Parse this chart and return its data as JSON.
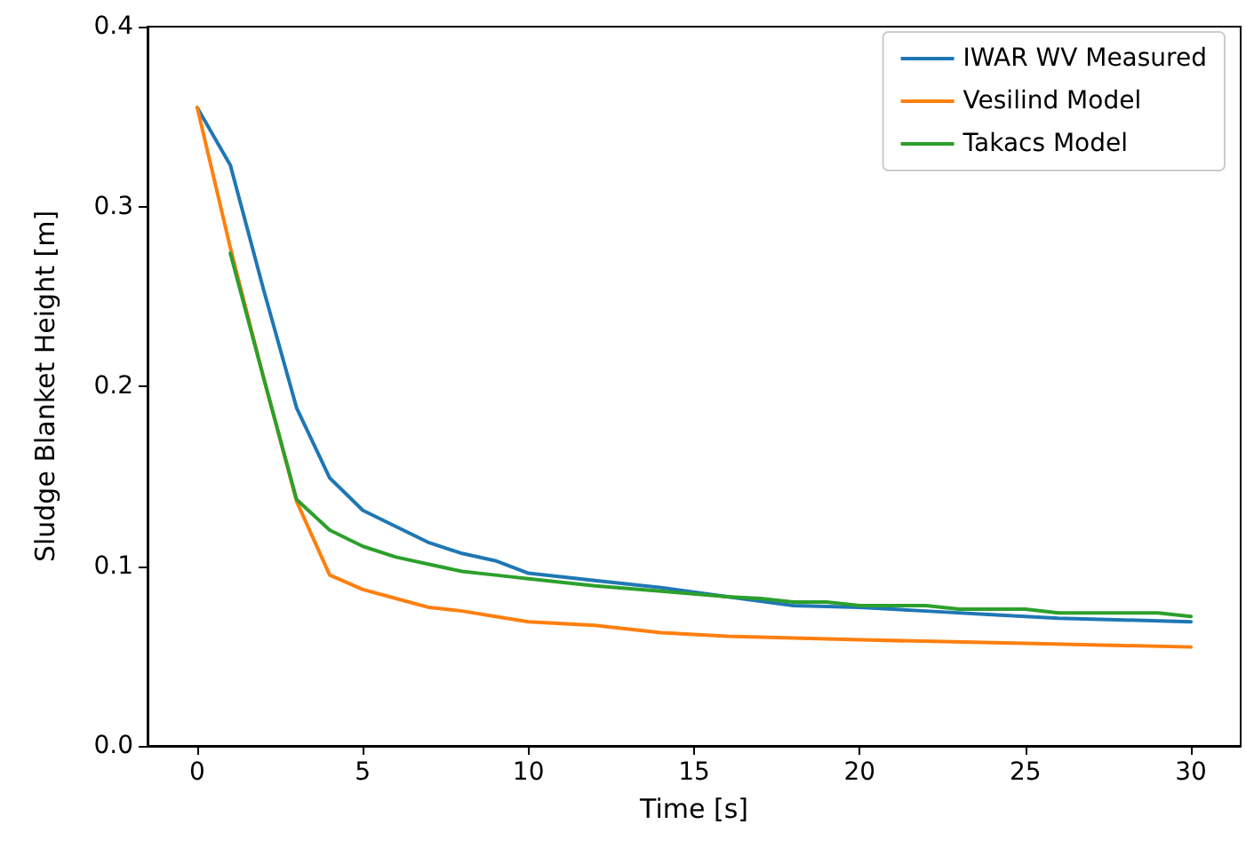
{
  "chart_data": {
    "type": "line",
    "xlabel": "Time [s]",
    "ylabel": "Sludge Blanket Height [m]",
    "xlim": [
      -1.5,
      31.5
    ],
    "ylim": [
      0,
      0.4
    ],
    "xticks": [
      0,
      5,
      10,
      15,
      20,
      25,
      30
    ],
    "yticks": [
      {
        "value": 0,
        "label": "0.0"
      },
      {
        "value": 0.1,
        "label": "0.1"
      },
      {
        "value": 0.2,
        "label": "0.2"
      },
      {
        "value": 0.3,
        "label": "0.3"
      },
      {
        "value": 0.4,
        "label": "0.4"
      }
    ],
    "grid": false,
    "legend": "top right",
    "marker": "none",
    "line_style": "solid",
    "series": [
      {
        "name": "IWAR WV Measured",
        "color": "#1f77b4",
        "x": [
          0,
          1,
          2,
          3,
          4,
          5,
          6,
          7,
          8,
          9,
          10,
          12,
          14,
          16,
          18,
          20,
          22,
          24,
          26,
          28,
          30
        ],
        "values": [
          0.355,
          0.323,
          0.254,
          0.188,
          0.149,
          0.131,
          0.122,
          0.113,
          0.107,
          0.103,
          0.096,
          0.092,
          0.088,
          0.083,
          0.078,
          0.077,
          0.075,
          0.073,
          0.071,
          0.07,
          0.069
        ]
      },
      {
        "name": "Vesilind Model",
        "color": "#ff7f0e",
        "x": [
          0,
          1,
          2,
          3,
          4,
          5,
          6,
          7,
          8,
          9,
          10,
          12,
          14,
          16,
          18,
          20,
          25,
          30
        ],
        "values": [
          0.355,
          0.277,
          0.205,
          0.136,
          0.095,
          0.087,
          0.082,
          0.077,
          0.075,
          0.072,
          0.069,
          0.067,
          0.063,
          0.061,
          0.06,
          0.059,
          0.057,
          0.055
        ]
      },
      {
        "name": "Takacs Model",
        "color": "#2ca02c",
        "x": [
          1,
          2,
          3,
          4,
          5,
          6,
          7,
          8,
          9,
          10,
          12,
          14,
          16,
          17,
          18,
          19,
          20,
          22,
          23,
          25,
          26,
          29,
          30
        ],
        "values": [
          0.274,
          0.205,
          0.137,
          0.12,
          0.111,
          0.105,
          0.101,
          0.097,
          0.095,
          0.093,
          0.089,
          0.086,
          0.083,
          0.082,
          0.08,
          0.08,
          0.078,
          0.078,
          0.076,
          0.076,
          0.074,
          0.074,
          0.072
        ]
      }
    ]
  }
}
